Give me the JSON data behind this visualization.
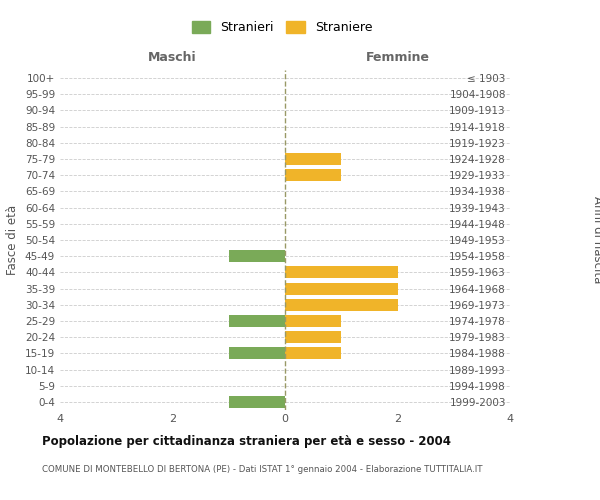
{
  "age_groups": [
    "100+",
    "95-99",
    "90-94",
    "85-89",
    "80-84",
    "75-79",
    "70-74",
    "65-69",
    "60-64",
    "55-59",
    "50-54",
    "45-49",
    "40-44",
    "35-39",
    "30-34",
    "25-29",
    "20-24",
    "15-19",
    "10-14",
    "5-9",
    "0-4"
  ],
  "birth_years": [
    "≤ 1903",
    "1904-1908",
    "1909-1913",
    "1914-1918",
    "1919-1923",
    "1924-1928",
    "1929-1933",
    "1934-1938",
    "1939-1943",
    "1944-1948",
    "1949-1953",
    "1954-1958",
    "1959-1963",
    "1964-1968",
    "1969-1973",
    "1974-1978",
    "1979-1983",
    "1984-1988",
    "1989-1993",
    "1994-1998",
    "1999-2003"
  ],
  "maschi_stranieri": [
    0,
    0,
    0,
    0,
    0,
    0,
    0,
    0,
    0,
    0,
    0,
    1,
    0,
    0,
    0,
    1,
    0,
    1,
    0,
    0,
    1
  ],
  "femmine_straniere": [
    0,
    0,
    0,
    0,
    0,
    1,
    1,
    0,
    0,
    0,
    0,
    0,
    2,
    2,
    2,
    1,
    1,
    1,
    0,
    0,
    0
  ],
  "color_maschi": "#7aaa58",
  "color_femmine": "#f0b429",
  "xlim": 4,
  "title": "Popolazione per cittadinanza straniera per età e sesso - 2004",
  "subtitle": "COMUNE DI MONTEBELLO DI BERTONA (PE) - Dati ISTAT 1° gennaio 2004 - Elaborazione TUTTITALIA.IT",
  "ylabel_left": "Fasce di età",
  "ylabel_right": "Anni di nascita",
  "xlabel_maschi": "Maschi",
  "xlabel_femmine": "Femmine",
  "legend_stranieri": "Stranieri",
  "legend_straniere": "Straniere",
  "background_color": "#ffffff",
  "grid_color": "#cccccc",
  "bar_height": 0.75
}
